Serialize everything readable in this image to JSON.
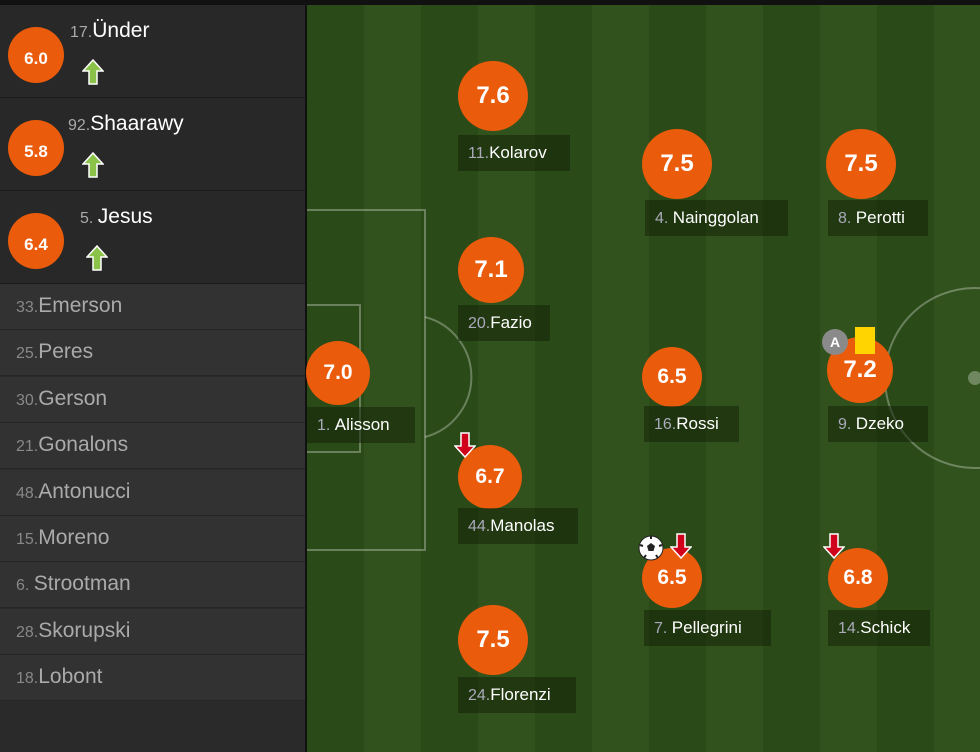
{
  "colors": {
    "rating": "#ea5b0c",
    "sub_in": "#8bc34a",
    "sub_out": "#d0021b",
    "yellow_card": "#ffd400"
  },
  "substitutes": [
    {
      "number": "17.",
      "name": "Ünder",
      "rating": "6.0",
      "icon": "sub-in-arrow-icon"
    },
    {
      "number": "92.",
      "name": "Shaarawy",
      "rating": "5.8",
      "icon": "sub-in-arrow-icon"
    },
    {
      "number": "5. ",
      "name": "Jesus",
      "rating": "6.4",
      "icon": "sub-in-arrow-icon"
    }
  ],
  "bench": [
    {
      "number": "33.",
      "name": "Emerson"
    },
    {
      "number": "25.",
      "name": "Peres"
    },
    {
      "number": "30.",
      "name": "Gerson"
    },
    {
      "number": "21.",
      "name": "Gonalons"
    },
    {
      "number": "48.",
      "name": "Antonucci"
    },
    {
      "number": "15.",
      "name": "Moreno"
    },
    {
      "number": "6. ",
      "name": "Strootman"
    },
    {
      "number": "28.",
      "name": "Skorupski"
    },
    {
      "number": "18.",
      "name": "Lobont"
    }
  ],
  "players": [
    {
      "number": "11.",
      "name": "Kolarov",
      "rating": "7.6"
    },
    {
      "number": "4. ",
      "name": "Nainggolan",
      "rating": "7.5"
    },
    {
      "number": "8. ",
      "name": "Perotti",
      "rating": "7.5"
    },
    {
      "number": "20.",
      "name": "Fazio",
      "rating": "7.1"
    },
    {
      "number": "1. ",
      "name": "Alisson",
      "rating": "7.0"
    },
    {
      "number": "16.",
      "name": "Rossi",
      "rating": "6.5"
    },
    {
      "number": "9. ",
      "name": "Dzeko",
      "rating": "7.2",
      "captain": "A",
      "events": [
        "captain-icon",
        "yellow-card-icon"
      ]
    },
    {
      "number": "44.",
      "name": "Manolas",
      "rating": "6.7",
      "events": [
        "sub-out-arrow-icon"
      ]
    },
    {
      "number": "7. ",
      "name": "Pellegrini",
      "rating": "6.5",
      "events": [
        "goal-ball-icon",
        "sub-out-arrow-icon"
      ]
    },
    {
      "number": "14.",
      "name": "Schick",
      "rating": "6.8",
      "events": [
        "sub-out-arrow-icon"
      ]
    },
    {
      "number": "24.",
      "name": "Florenzi",
      "rating": "7.5"
    }
  ]
}
